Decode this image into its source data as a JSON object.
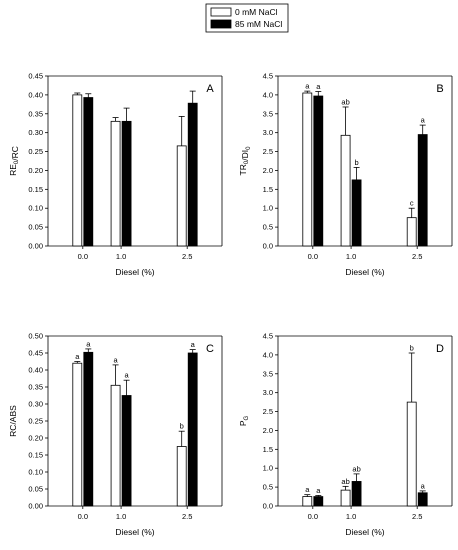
{
  "legend": {
    "items": [
      {
        "label": "0 mM NaCl",
        "color": "#ffffff"
      },
      {
        "label": "85 mM NaCl",
        "color": "#000000"
      }
    ]
  },
  "colors": {
    "series_0": "#ffffff",
    "series_1": "#000000",
    "axis": "#000000"
  },
  "chart_data": [
    {
      "type": "bar",
      "panel": "A",
      "xlabel": "Diesel (%)",
      "ylabel": "RE0/RC",
      "ylabel_main": "RE",
      "ylabel_sub": "0",
      "ylabel_tail": "/RC",
      "categories": [
        "0.0",
        "1.0",
        "2.5"
      ],
      "ylim": [
        0,
        0.45
      ],
      "yticks": [
        "0.00",
        "0.05",
        "0.10",
        "0.15",
        "0.20",
        "0.25",
        "0.30",
        "0.35",
        "0.40",
        "0.45"
      ],
      "series": [
        {
          "name": "0 mM NaCl",
          "values": [
            0.4,
            0.33,
            0.265
          ],
          "errors": [
            0.005,
            0.01,
            0.078
          ],
          "letters": [
            "",
            "",
            ""
          ]
        },
        {
          "name": "85 mM NaCl",
          "values": [
            0.393,
            0.33,
            0.378
          ],
          "errors": [
            0.01,
            0.035,
            0.032
          ],
          "letters": [
            "",
            "",
            ""
          ]
        }
      ]
    },
    {
      "type": "bar",
      "panel": "B",
      "xlabel": "Diesel (%)",
      "ylabel": "TR0/DI0",
      "ylabel_main": "TR",
      "ylabel_sub": "0",
      "ylabel_tail": "/DI",
      "ylabel_sub2": "0",
      "categories": [
        "0.0",
        "1.0",
        "2.5"
      ],
      "ylim": [
        0,
        4.5
      ],
      "yticks": [
        "0.0",
        "0.5",
        "1.0",
        "1.5",
        "2.0",
        "2.5",
        "3.0",
        "3.5",
        "4.0",
        "4.5"
      ],
      "series": [
        {
          "name": "0 mM NaCl",
          "values": [
            4.05,
            2.93,
            0.75
          ],
          "errors": [
            0.05,
            0.75,
            0.25
          ],
          "letters": [
            "a",
            "ab",
            "c"
          ]
        },
        {
          "name": "85 mM NaCl",
          "values": [
            3.97,
            1.75,
            2.95
          ],
          "errors": [
            0.12,
            0.33,
            0.25
          ],
          "letters": [
            "a",
            "b",
            "a"
          ]
        }
      ]
    },
    {
      "type": "bar",
      "panel": "C",
      "xlabel": "Diesel (%)",
      "ylabel": "RC/ABS",
      "ylabel_main": "RC/ABS",
      "categories": [
        "0.0",
        "1.0",
        "2.5"
      ],
      "ylim": [
        0,
        0.5
      ],
      "yticks": [
        "0.00",
        "0.05",
        "0.10",
        "0.15",
        "0.20",
        "0.25",
        "0.30",
        "0.35",
        "0.40",
        "0.45",
        "0.50"
      ],
      "series": [
        {
          "name": "0 mM NaCl",
          "values": [
            0.42,
            0.355,
            0.175
          ],
          "errors": [
            0.005,
            0.06,
            0.045
          ],
          "letters": [
            "a",
            "a",
            "b"
          ]
        },
        {
          "name": "85 mM NaCl",
          "values": [
            0.452,
            0.325,
            0.45
          ],
          "errors": [
            0.01,
            0.045,
            0.01
          ],
          "letters": [
            "a",
            "a",
            "a"
          ]
        }
      ]
    },
    {
      "type": "bar",
      "panel": "D",
      "xlabel": "Diesel (%)",
      "ylabel": "PG",
      "ylabel_main": "P",
      "ylabel_sub": "G",
      "categories": [
        "0.0",
        "1.0",
        "2.5"
      ],
      "ylim": [
        0,
        4.5
      ],
      "yticks": [
        "0.0",
        "0.5",
        "1.0",
        "1.5",
        "2.0",
        "2.5",
        "3.0",
        "3.5",
        "4.0",
        "4.5"
      ],
      "series": [
        {
          "name": "0 mM NaCl",
          "values": [
            0.25,
            0.42,
            2.75
          ],
          "errors": [
            0.05,
            0.1,
            1.3
          ],
          "letters": [
            "a",
            "ab",
            "b"
          ]
        },
        {
          "name": "85 mM NaCl",
          "values": [
            0.25,
            0.65,
            0.35
          ],
          "errors": [
            0.03,
            0.2,
            0.05
          ],
          "letters": [
            "a",
            "ab",
            "a"
          ]
        }
      ]
    }
  ]
}
